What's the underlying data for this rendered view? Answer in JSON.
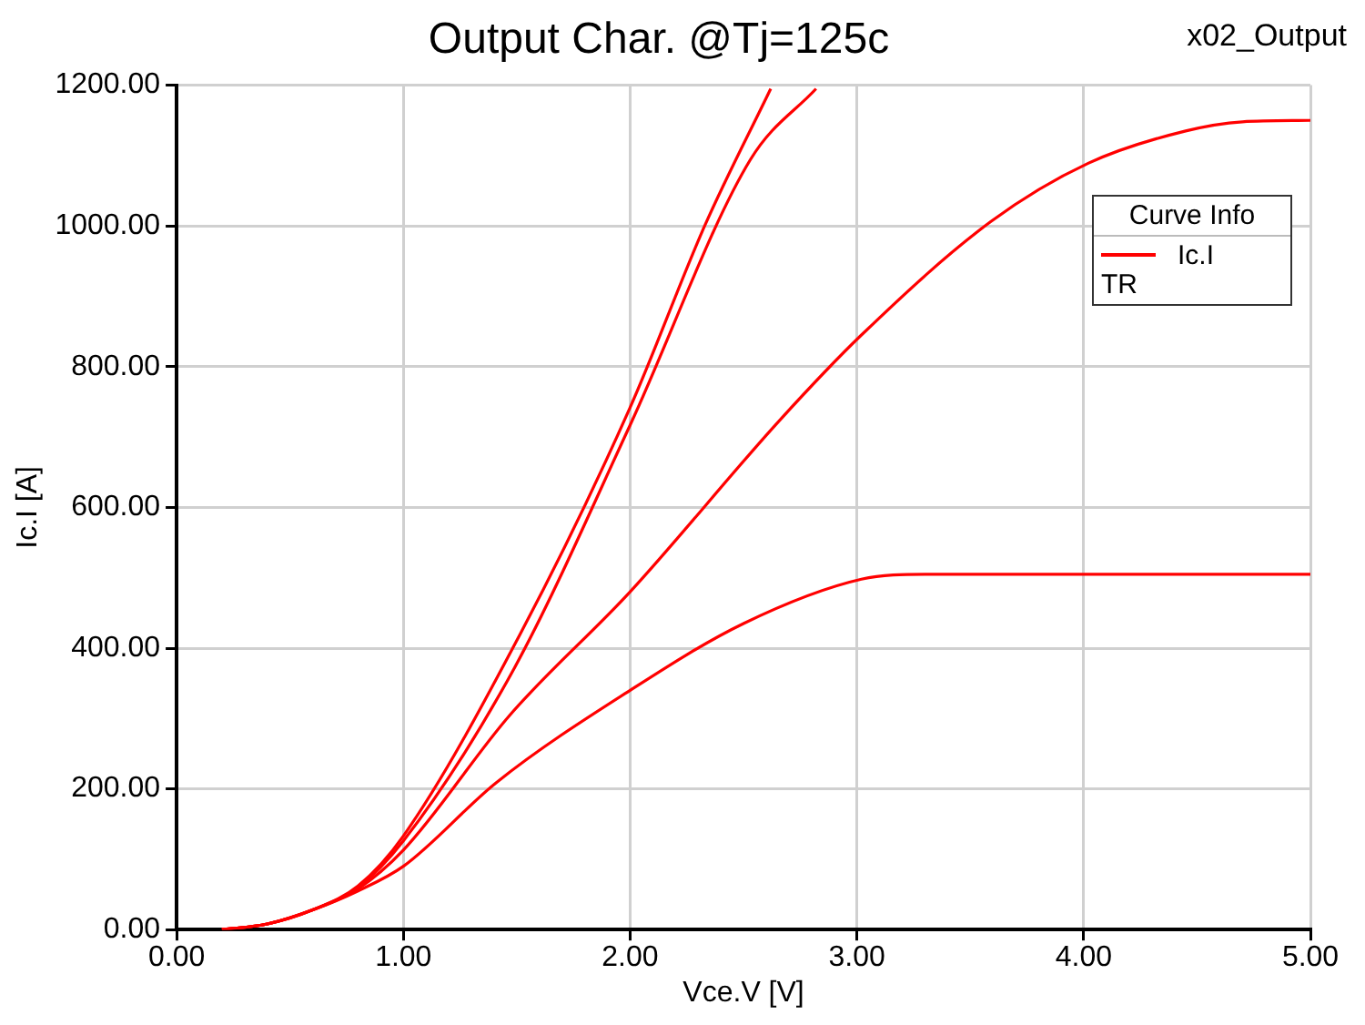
{
  "chart_data": {
    "type": "line",
    "title": "Output Char. @Tj=125c",
    "xlabel": "Vce.V [V]",
    "ylabel": "Ic.I [A]",
    "legend_title": "Curve Info",
    "annotations": [
      "x02_Output",
      "TR"
    ],
    "series": [
      {
        "name": "Ic.I",
        "color": "#ff0000",
        "x": [
          0.2,
          0.4,
          0.6,
          0.8,
          1.0,
          1.52,
          2.0,
          2.33,
          2.62
        ],
        "values": [
          0,
          8,
          28,
          62,
          133,
          423,
          742,
          1001,
          1195
        ]
      },
      {
        "color": "#ff0000",
        "x": [
          0.2,
          0.4,
          0.6,
          0.8,
          1.0,
          1.49,
          2.0,
          2.53,
          2.82
        ],
        "values": [
          0,
          8,
          28,
          60,
          126,
          372,
          717,
          1094,
          1195
        ]
      },
      {
        "color": "#ff0000",
        "x": [
          0.2,
          0.4,
          0.6,
          0.8,
          1.0,
          1.47,
          2.0,
          2.66,
          3.02,
          3.59,
          4.02,
          4.45,
          4.7,
          5.0
        ],
        "values": [
          0,
          8,
          28,
          58,
          113,
          305,
          480,
          724,
          845,
          1006,
          1089,
          1135,
          1148,
          1150
        ]
      },
      {
        "color": "#ff0000",
        "x": [
          0.2,
          0.4,
          0.6,
          0.8,
          1.0,
          1.41,
          2.0,
          2.5,
          3.02,
          3.3,
          5.0
        ],
        "values": [
          0,
          8,
          28,
          55,
          90,
          209,
          340,
          435,
          498,
          505,
          505
        ]
      }
    ],
    "xlim": [
      0,
      5
    ],
    "ylim": [
      0,
      1200
    ],
    "xticks": [
      {
        "value": 0,
        "label": "0.00"
      },
      {
        "value": 1,
        "label": "1.00"
      },
      {
        "value": 2,
        "label": "2.00"
      },
      {
        "value": 3,
        "label": "3.00"
      },
      {
        "value": 4,
        "label": "4.00"
      },
      {
        "value": 5,
        "label": "5.00"
      }
    ],
    "yticks": [
      {
        "value": 0,
        "label": "0.00"
      },
      {
        "value": 200,
        "label": "200.00"
      },
      {
        "value": 400,
        "label": "400.00"
      },
      {
        "value": 600,
        "label": "600.00"
      },
      {
        "value": 800,
        "label": "800.00"
      },
      {
        "value": 1000,
        "label": "1000.00"
      },
      {
        "value": 1200,
        "label": "1200.00"
      }
    ],
    "grid": true,
    "legend": "top right",
    "marker": "none",
    "line_style": "solid"
  }
}
